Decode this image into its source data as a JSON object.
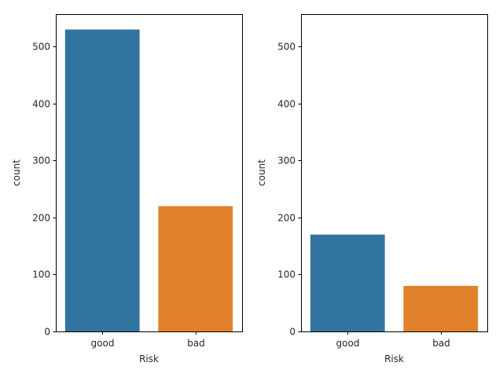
{
  "chart_data": [
    {
      "type": "bar",
      "categories": [
        "good",
        "bad"
      ],
      "values": [
        530,
        220
      ],
      "colors": [
        "#3274a1",
        "#e1812c"
      ],
      "xlabel": "Risk",
      "ylabel": "count",
      "ylim": [
        0,
        557
      ],
      "yticks": [
        0,
        100,
        200,
        300,
        400,
        500
      ],
      "grid": false
    },
    {
      "type": "bar",
      "categories": [
        "good",
        "bad"
      ],
      "values": [
        170,
        80
      ],
      "colors": [
        "#3274a1",
        "#e1812c"
      ],
      "xlabel": "Risk",
      "ylabel": "count",
      "ylim": [
        0,
        557
      ],
      "yticks": [
        0,
        100,
        200,
        300,
        400,
        500
      ],
      "grid": false
    }
  ]
}
